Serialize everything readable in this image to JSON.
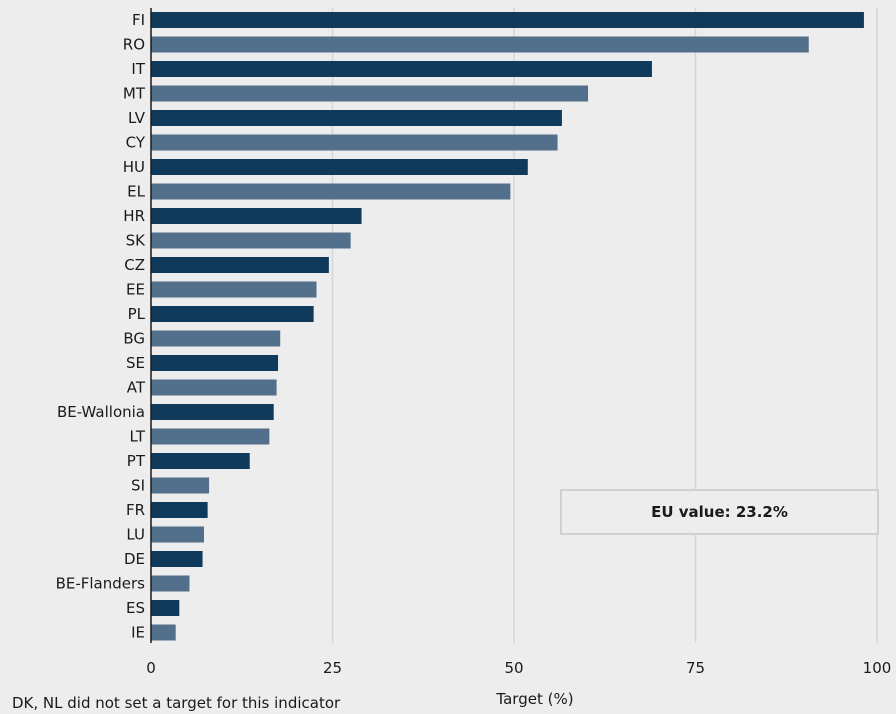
{
  "chart_data": {
    "type": "bar",
    "orientation": "horizontal",
    "categories": [
      "FI",
      "RO",
      "IT",
      "MT",
      "LV",
      "CY",
      "HU",
      "EL",
      "HR",
      "SK",
      "CZ",
      "EE",
      "PL",
      "BG",
      "SE",
      "AT",
      "BE-Wallonia",
      "LT",
      "PT",
      "SI",
      "FR",
      "LU",
      "DE",
      "BE-Flanders",
      "ES",
      "IE"
    ],
    "values": [
      98.2,
      90.6,
      69.0,
      60.2,
      56.6,
      56.0,
      51.9,
      49.5,
      29.0,
      27.5,
      24.5,
      22.8,
      22.4,
      17.8,
      17.5,
      17.3,
      16.9,
      16.3,
      13.6,
      8.0,
      7.8,
      7.3,
      7.1,
      5.3,
      3.9,
      3.4
    ],
    "colors": [
      "#0f3a5c",
      "#52708b"
    ],
    "xlabel": "Target (%)",
    "ylabel": "",
    "xlim": [
      0,
      100
    ],
    "xticks": [
      0,
      25,
      50,
      75,
      100
    ],
    "grid": true,
    "annotation": "EU value: 23.2%",
    "footnote": "DK, NL did not set a target for this indicator"
  }
}
